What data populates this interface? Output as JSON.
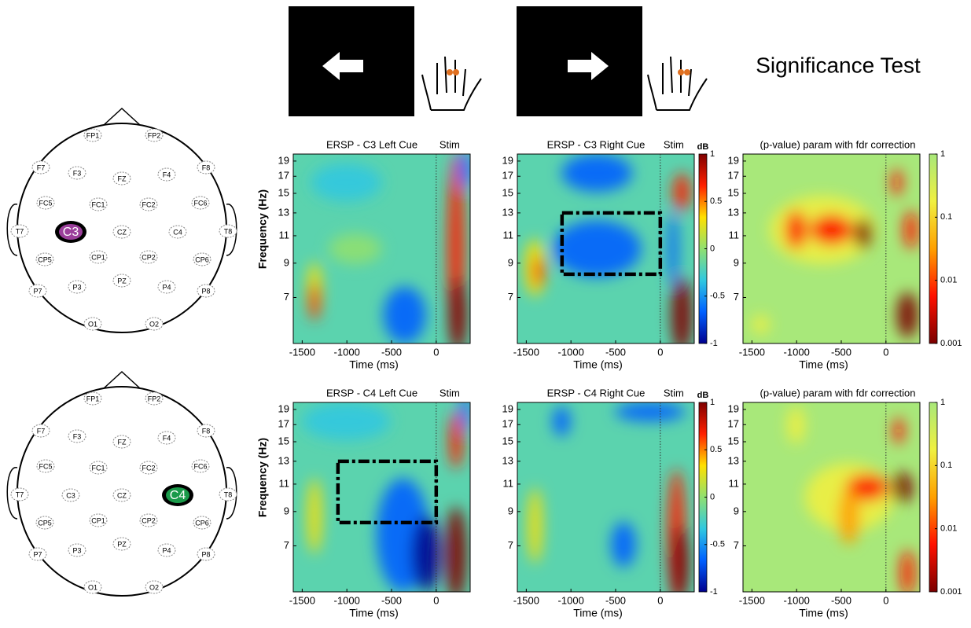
{
  "title": "Significance Test",
  "heads": [
    {
      "electrodes": [
        "FP1",
        "FP2",
        "F7",
        "F3",
        "FZ",
        "F4",
        "F8",
        "FC5",
        "FC1",
        "FC2",
        "FC6",
        "T7",
        "C3",
        "CZ",
        "C4",
        "T8",
        "CP5",
        "CP1",
        "CP2",
        "CP6",
        "P7",
        "P3",
        "PZ",
        "P4",
        "P8",
        "O1",
        "O2"
      ],
      "highlight": 12,
      "highlight_color": "#9b3f9b"
    },
    {
      "electrodes": [
        "FP1",
        "FP2",
        "F7",
        "F3",
        "FZ",
        "F4",
        "F8",
        "FC5",
        "FC1",
        "FC2",
        "FC6",
        "T7",
        "C3",
        "CZ",
        "C4",
        "T8",
        "CP5",
        "CP1",
        "CP2",
        "CP6",
        "P7",
        "P3",
        "PZ",
        "P4",
        "P8",
        "O1",
        "O2"
      ],
      "highlight": 14,
      "highlight_color": "#1a9a4a"
    }
  ],
  "chart_data": [
    {
      "type": "heatmap",
      "title": "ERSP - C3 Left Cue",
      "marker_label": "Stim",
      "marker_x": 0,
      "xlabel": "Time (ms)",
      "ylabel": "Frequency (Hz)",
      "xlim": [
        -1600,
        380
      ],
      "xticks": [
        -1500,
        -1000,
        -500,
        0
      ],
      "ylim": [
        5,
        20
      ],
      "log_y": true,
      "yticks": [
        7,
        9,
        11,
        13,
        15,
        17,
        19
      ],
      "colormap": [
        "#00008f",
        "#0060ff",
        "#30c8e0",
        "#90e070",
        "#ffe000",
        "#ff2000",
        "#800000"
      ]
    },
    {
      "type": "heatmap",
      "title": "ERSP - C3 Right Cue",
      "marker_label": "Stim",
      "marker_x": 0,
      "xlabel": "Time (ms)",
      "xlim": [
        -1600,
        380
      ],
      "xticks": [
        -1500,
        -1000,
        -500,
        0
      ],
      "ylim": [
        5,
        20
      ],
      "log_y": true,
      "yticks": [
        7,
        9,
        11,
        13,
        15,
        17,
        19
      ],
      "colormap": [
        "#00008f",
        "#0060ff",
        "#30c8e0",
        "#90e070",
        "#ffe000",
        "#ff2000",
        "#800000"
      ],
      "box": {
        "x": [
          -1100,
          0
        ],
        "y": [
          8.3,
          13
        ]
      },
      "colorbar": {
        "label": "dB",
        "lim": [
          -1,
          1
        ],
        "ticks": [
          1,
          0.5,
          0,
          -0.5,
          -1
        ],
        "log": false
      }
    },
    {
      "type": "heatmap",
      "title": "(p-value) param with fdr correction",
      "marker_x": 0,
      "xlabel": "Time (ms)",
      "xlim": [
        -1600,
        380
      ],
      "xticks": [
        -1500,
        -1000,
        -500,
        0
      ],
      "ylim": [
        5,
        20
      ],
      "log_y": true,
      "yticks": [
        7,
        9,
        11,
        13,
        15,
        17,
        19
      ],
      "colormap": [
        "#7a0000",
        "#ff1000",
        "#ffa000",
        "#f0f040",
        "#a8e87a"
      ],
      "colorbar": {
        "lim": [
          0.001,
          1
        ],
        "ticks": [
          1,
          0.1,
          0.01,
          0.001
        ],
        "log": true
      }
    },
    {
      "type": "heatmap",
      "title": "ERSP - C4 Left Cue",
      "marker_label": "Stim",
      "marker_x": 0,
      "xlabel": "Time (ms)",
      "ylabel": "Frequency (Hz)",
      "xlim": [
        -1600,
        380
      ],
      "xticks": [
        -1500,
        -1000,
        -500,
        0
      ],
      "ylim": [
        5,
        20
      ],
      "log_y": true,
      "yticks": [
        7,
        9,
        11,
        13,
        15,
        17,
        19
      ],
      "colormap": [
        "#00008f",
        "#0060ff",
        "#30c8e0",
        "#90e070",
        "#ffe000",
        "#ff2000",
        "#800000"
      ],
      "box": {
        "x": [
          -1100,
          0
        ],
        "y": [
          8.3,
          13
        ]
      }
    },
    {
      "type": "heatmap",
      "title": "ERSP - C4 Right Cue",
      "marker_label": "Stim",
      "marker_x": 0,
      "xlabel": "Time (ms)",
      "xlim": [
        -1600,
        380
      ],
      "xticks": [
        -1500,
        -1000,
        -500,
        0
      ],
      "ylim": [
        5,
        20
      ],
      "log_y": true,
      "yticks": [
        7,
        9,
        11,
        13,
        15,
        17,
        19
      ],
      "colormap": [
        "#00008f",
        "#0060ff",
        "#30c8e0",
        "#90e070",
        "#ffe000",
        "#ff2000",
        "#800000"
      ],
      "colorbar": {
        "label": "dB",
        "lim": [
          -1,
          1
        ],
        "ticks": [
          1,
          0.5,
          0,
          -0.5,
          -1
        ],
        "log": false
      }
    },
    {
      "type": "heatmap",
      "title": "(p-value) param with fdr correction",
      "marker_x": 0,
      "xlabel": "Time (ms)",
      "xlim": [
        -1600,
        380
      ],
      "xticks": [
        -1500,
        -1000,
        -500,
        0
      ],
      "ylim": [
        5,
        20
      ],
      "log_y": true,
      "yticks": [
        7,
        9,
        11,
        13,
        15,
        17,
        19
      ],
      "colormap": [
        "#7a0000",
        "#ff1000",
        "#ffa000",
        "#f0f040",
        "#a8e87a"
      ],
      "colorbar": {
        "lim": [
          0.001,
          1
        ],
        "ticks": [
          1,
          0.1,
          0.01,
          0.001
        ],
        "log": true
      }
    }
  ]
}
